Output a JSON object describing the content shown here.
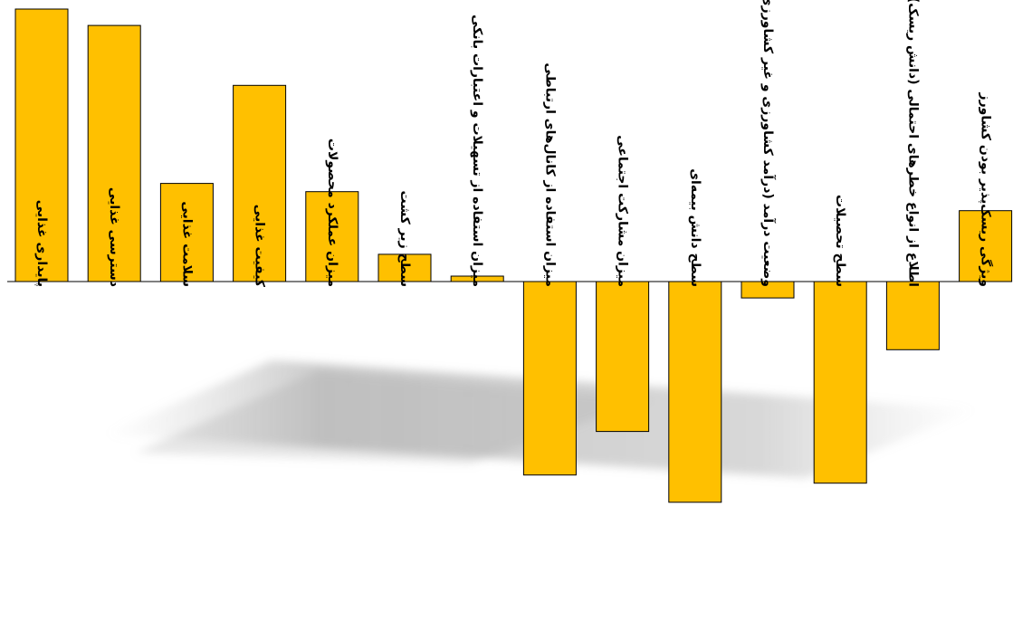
{
  "chart_data": {
    "type": "bar",
    "title": "",
    "xlabel": "",
    "ylabel": "",
    "ylim": [
      -0.82,
      1.0
    ],
    "grid": false,
    "legend": "none",
    "bar_color": "#FFC000",
    "bar_stroke": "#000000",
    "categories": [
      "پایداری غذایی",
      "دسترسی غذایی",
      "سلامت غذایی",
      "کیفیت غذایی",
      "میزان عملکرد محصولات",
      "سطح زیر کشت",
      "میزان استفاده از تسهیلات و اعتبارات بانکی",
      "میزان استفاده از کانال‌های ارتباطی",
      "میزان مشارکت اجتماعی",
      "سطح دانش بیمه‌ای",
      "وضعیت درآمد (درآمد کشاورزی و غیر کشاورزی)",
      "سطح تحصیلات",
      "اطلاع از انواع خطرهای احتمالی (دانش ریسک)",
      "ویژگی ریسک‌پذیر بودن کشاورز"
    ],
    "values": [
      1.0,
      0.94,
      0.36,
      0.72,
      0.33,
      0.1,
      0.02,
      -0.71,
      -0.55,
      -0.81,
      -0.06,
      -0.74,
      -0.25,
      0.26
    ]
  }
}
